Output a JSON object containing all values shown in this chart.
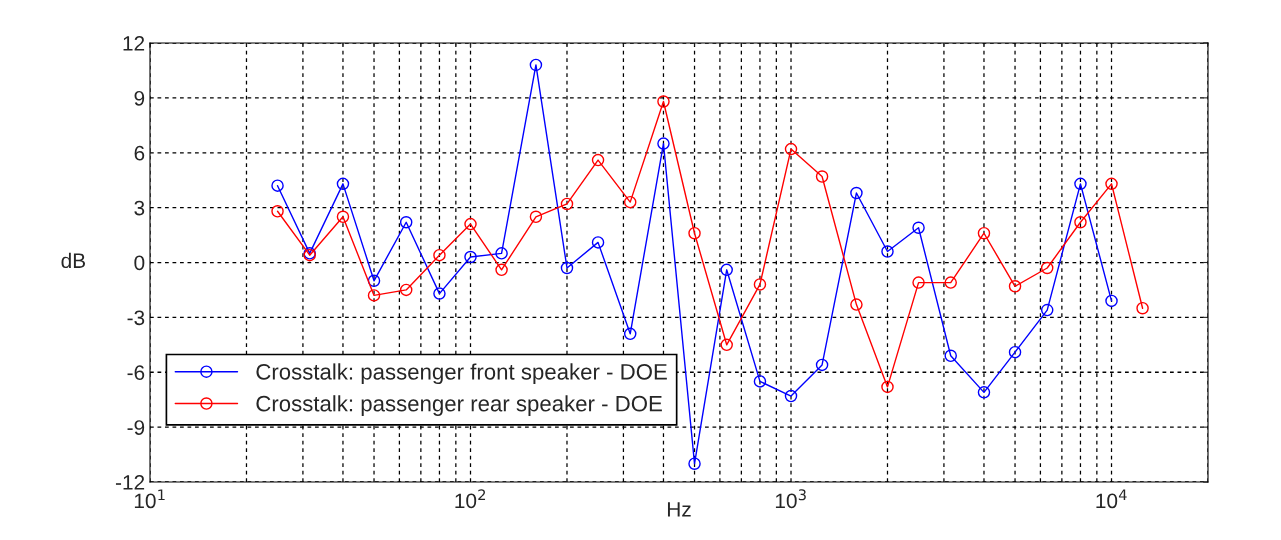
{
  "chart_data": {
    "type": "line",
    "xlabel": "Hz",
    "ylabel": "dB",
    "log": "x",
    "x": [
      25,
      31.5,
      40,
      50,
      63,
      80,
      100,
      125,
      160,
      200,
      250,
      315,
      400,
      500,
      630,
      800,
      1000,
      1250,
      1600,
      2000,
      2500,
      3150,
      4000,
      5000,
      6300,
      8000,
      10000,
      12500
    ],
    "series": [
      {
        "name": "Crosstalk: passenger front speaker - DOE",
        "color": "#0000ff",
        "values": [
          4.2,
          0.5,
          4.3,
          -1.0,
          2.2,
          -1.7,
          0.3,
          0.5,
          10.8,
          -0.3,
          1.1,
          -3.9,
          6.5,
          -11.0,
          -0.4,
          -6.5,
          -7.3,
          -5.6,
          3.8,
          0.6,
          1.9,
          -5.1,
          -7.1,
          -4.9,
          -2.6,
          4.3,
          -2.1,
          null
        ]
      },
      {
        "name": "Crosstalk: passenger rear speaker - DOE",
        "color": "#ff0000",
        "values": [
          2.8,
          0.4,
          2.5,
          -1.8,
          -1.5,
          0.4,
          2.1,
          -0.4,
          2.5,
          3.2,
          5.6,
          3.3,
          8.8,
          1.6,
          -4.5,
          -1.2,
          6.2,
          4.7,
          -2.3,
          -6.8,
          -1.1,
          -1.1,
          1.6,
          -1.3,
          -0.3,
          2.2,
          4.3,
          -2.5
        ]
      }
    ],
    "xlim": [
      10,
      20000
    ],
    "xticks": [
      {
        "value": 10,
        "label": "10$^{1}$"
      },
      {
        "value": 100,
        "label": "10$^{2}$"
      },
      {
        "value": 1000,
        "label": "10$^{3}$"
      },
      {
        "value": 10000,
        "label": "10$^{4}$"
      }
    ],
    "ylim": [
      -12,
      12
    ],
    "yticks": [
      -12,
      -9,
      -6,
      -3,
      0,
      3,
      6,
      9,
      12
    ],
    "grid": true,
    "legend": "bottom left",
    "marker": "circle",
    "line_style": "solid"
  }
}
